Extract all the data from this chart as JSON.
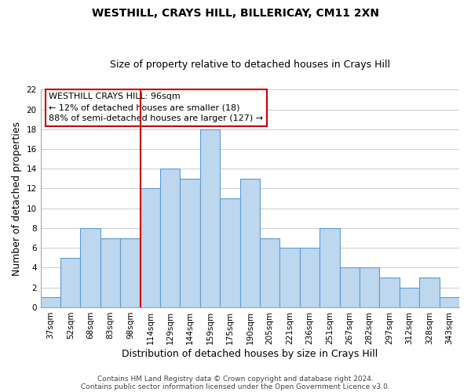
{
  "title": "WESTHILL, CRAYS HILL, BILLERICAY, CM11 2XN",
  "subtitle": "Size of property relative to detached houses in Crays Hill",
  "xlabel": "Distribution of detached houses by size in Crays Hill",
  "ylabel": "Number of detached properties",
  "footnote1": "Contains HM Land Registry data © Crown copyright and database right 2024.",
  "footnote2": "Contains public sector information licensed under the Open Government Licence v3.0.",
  "bin_labels": [
    "37sqm",
    "52sqm",
    "68sqm",
    "83sqm",
    "98sqm",
    "114sqm",
    "129sqm",
    "144sqm",
    "159sqm",
    "175sqm",
    "190sqm",
    "205sqm",
    "221sqm",
    "236sqm",
    "251sqm",
    "267sqm",
    "282sqm",
    "297sqm",
    "312sqm",
    "328sqm",
    "343sqm"
  ],
  "bar_heights": [
    1,
    5,
    8,
    7,
    7,
    12,
    14,
    13,
    18,
    11,
    13,
    7,
    6,
    6,
    8,
    4,
    4,
    3,
    2,
    3,
    1
  ],
  "bar_color": "#bdd7ee",
  "bar_edge_color": "#5b9bd5",
  "reference_line_index": 4,
  "reference_line_color": "#cc0000",
  "annotation_line1": "WESTHILL CRAYS HILL: 96sqm",
  "annotation_line2": "← 12% of detached houses are smaller (18)",
  "annotation_line3": "88% of semi-detached houses are larger (127) →",
  "annotation_box_edge_color": "#cc0000",
  "ylim": [
    0,
    22
  ],
  "yticks": [
    0,
    2,
    4,
    6,
    8,
    10,
    12,
    14,
    16,
    18,
    20,
    22
  ],
  "background_color": "#ffffff",
  "grid_color": "#cccccc",
  "title_fontsize": 10,
  "subtitle_fontsize": 9,
  "axis_label_fontsize": 9,
  "tick_fontsize": 7.5,
  "annotation_fontsize": 8,
  "footnote_fontsize": 6.5
}
